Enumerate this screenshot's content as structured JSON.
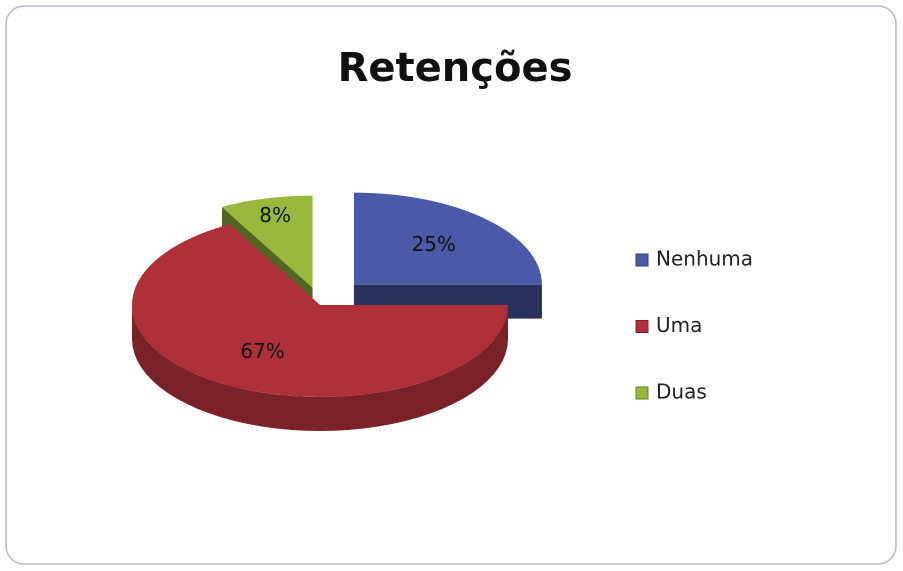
{
  "chart_data": {
    "type": "pie",
    "title": "Retenções",
    "categories": [
      "Nenhuma",
      "Uma",
      "Duas"
    ],
    "values": [
      25,
      67,
      8
    ],
    "value_labels": [
      "25%",
      "67%",
      "8%"
    ],
    "colors": [
      "#4a5aa8",
      "#b0303a",
      "#98b83c"
    ],
    "legend": "right"
  }
}
